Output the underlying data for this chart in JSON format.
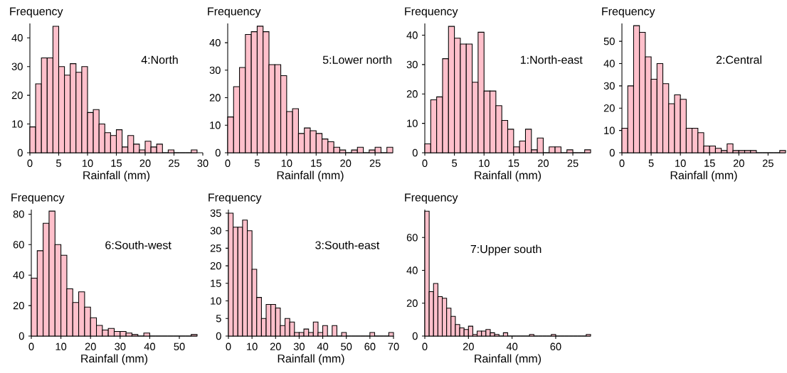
{
  "chart_data": [
    {
      "type": "histogram",
      "xlabel": "Rainfall (mm)",
      "ylabel": "Frequency",
      "annotations": [
        "4:North"
      ],
      "color": "#ffc0cb",
      "bins": [
        0,
        1,
        2,
        3,
        4,
        5,
        6,
        7,
        8,
        9,
        10,
        11,
        12,
        13,
        14,
        15,
        16,
        17,
        18,
        19,
        20,
        21,
        22,
        23,
        24,
        25,
        26,
        27,
        28,
        29
      ],
      "values": [
        9,
        24,
        33,
        33,
        44,
        30,
        27,
        31,
        28,
        30,
        14,
        15,
        10,
        7,
        6,
        8,
        2,
        6,
        3,
        1,
        4,
        2,
        3,
        0,
        1,
        0,
        0,
        0,
        1
      ],
      "xlim": [
        0,
        30
      ],
      "xticks": [
        0,
        5,
        10,
        15,
        20,
        25,
        30
      ],
      "ylim": [
        0,
        45
      ],
      "yticks": [
        0,
        10,
        20,
        30,
        40
      ]
    },
    {
      "type": "histogram",
      "xlabel": "Rainfall (mm)",
      "ylabel": "Frequency",
      "annotations": [
        "5:Lower north"
      ],
      "color": "#ffc0cb",
      "bins": [
        0,
        1,
        2,
        3,
        4,
        5,
        6,
        7,
        8,
        9,
        10,
        11,
        12,
        13,
        14,
        15,
        16,
        17,
        18,
        19,
        20,
        21,
        22,
        23,
        24,
        25,
        26,
        27,
        28
      ],
      "values": [
        13,
        24,
        31,
        43,
        44,
        46,
        44,
        32,
        32,
        28,
        15,
        16,
        7,
        9,
        8,
        7,
        5,
        4,
        2,
        1,
        0,
        1,
        2,
        0,
        1,
        2,
        0,
        2
      ],
      "xlim": [
        0,
        28
      ],
      "xticks": [
        0,
        5,
        10,
        15,
        20,
        25
      ],
      "ylim": [
        0,
        47
      ],
      "yticks": [
        0,
        10,
        20,
        30,
        40
      ]
    },
    {
      "type": "histogram",
      "xlabel": "Rainfall (mm)",
      "ylabel": "Frequency",
      "annotations": [
        "1:North-east"
      ],
      "color": "#ffc0cb",
      "bins": [
        0,
        1,
        2,
        3,
        4,
        5,
        6,
        7,
        8,
        9,
        10,
        11,
        12,
        13,
        14,
        15,
        16,
        17,
        18,
        19,
        20,
        21,
        22,
        23,
        24,
        25,
        26,
        27,
        28
      ],
      "values": [
        3,
        18,
        19,
        32,
        43,
        39,
        37,
        37,
        24,
        41,
        21,
        21,
        16,
        11,
        8,
        2,
        4,
        8,
        1,
        5,
        0,
        2,
        2,
        0,
        1,
        0,
        0,
        1
      ],
      "xlim": [
        0,
        28
      ],
      "xticks": [
        0,
        5,
        10,
        15,
        20,
        25
      ],
      "ylim": [
        0,
        44
      ],
      "yticks": [
        0,
        10,
        20,
        30,
        40
      ]
    },
    {
      "type": "histogram",
      "xlabel": "Rainfall (mm)",
      "ylabel": "Frequency",
      "annotations": [
        "2:Central"
      ],
      "color": "#ffc0cb",
      "bins": [
        0,
        1,
        2,
        3,
        4,
        5,
        6,
        7,
        8,
        9,
        10,
        11,
        12,
        13,
        14,
        15,
        16,
        17,
        18,
        19,
        20,
        21,
        22,
        23,
        24,
        25,
        26,
        27,
        28
      ],
      "values": [
        11,
        30,
        57,
        54,
        43,
        33,
        40,
        31,
        22,
        26,
        24,
        11,
        11,
        9,
        3,
        3,
        2,
        1,
        4,
        1,
        1,
        1,
        1,
        0,
        0,
        0,
        0,
        1
      ],
      "xlim": [
        0,
        28
      ],
      "xticks": [
        0,
        5,
        10,
        15,
        20,
        25
      ],
      "ylim": [
        0,
        58
      ],
      "yticks": [
        0,
        10,
        20,
        30,
        40,
        50
      ]
    },
    {
      "type": "histogram",
      "xlabel": "Rainfall (mm)",
      "ylabel": "Frequency",
      "annotations": [
        "6:South-west"
      ],
      "color": "#ffc0cb",
      "bins": [
        0,
        2,
        4,
        6,
        8,
        10,
        12,
        14,
        16,
        18,
        20,
        22,
        24,
        26,
        28,
        30,
        32,
        34,
        36,
        38,
        40,
        42,
        44,
        46,
        48,
        50,
        52,
        54,
        56
      ],
      "values": [
        38,
        56,
        74,
        82,
        60,
        53,
        31,
        22,
        29,
        19,
        12,
        7,
        4,
        5,
        3,
        3,
        2,
        1,
        0,
        2,
        0,
        0,
        0,
        0,
        0,
        0,
        0,
        1
      ],
      "xlim": [
        0,
        56
      ],
      "xticks": [
        0,
        10,
        20,
        30,
        40,
        50
      ],
      "ylim": [
        0,
        83
      ],
      "yticks": [
        0,
        20,
        40,
        60,
        80
      ]
    },
    {
      "type": "histogram",
      "xlabel": "Rainfall (mm)",
      "ylabel": "Frequency",
      "annotations": [
        "3:South-east"
      ],
      "color": "#ffc0cb",
      "bins": [
        0,
        2,
        4,
        6,
        8,
        10,
        12,
        14,
        16,
        18,
        20,
        22,
        24,
        26,
        28,
        30,
        32,
        34,
        36,
        38,
        40,
        42,
        44,
        46,
        48,
        50,
        52,
        54,
        56,
        58,
        60,
        62,
        64,
        66,
        68,
        70
      ],
      "values": [
        35,
        31,
        31,
        33,
        30,
        19,
        11,
        5,
        9,
        9,
        8,
        3,
        5,
        4,
        1,
        1,
        2,
        1,
        4,
        1,
        3,
        0,
        3,
        0,
        1,
        0,
        0,
        0,
        0,
        0,
        1,
        0,
        0,
        0,
        1
      ],
      "xlim": [
        0,
        70
      ],
      "xticks": [
        0,
        10,
        20,
        30,
        40,
        50,
        60,
        70
      ],
      "ylim": [
        0,
        36
      ],
      "yticks": [
        0,
        5,
        10,
        15,
        20,
        25,
        30,
        35
      ]
    },
    {
      "type": "histogram",
      "xlabel": "Rainfall (mm)",
      "ylabel": "Frequency",
      "annotations": [
        "7:Upper south"
      ],
      "color": "#ffc0cb",
      "bins": [
        0,
        2,
        4,
        6,
        8,
        10,
        12,
        14,
        16,
        18,
        20,
        22,
        24,
        26,
        28,
        30,
        32,
        34,
        36,
        38,
        40,
        42,
        44,
        46,
        48,
        50,
        52,
        54,
        56,
        58,
        60,
        62,
        64,
        66,
        68,
        70,
        72,
        74,
        76
      ],
      "values": [
        76,
        27,
        32,
        24,
        23,
        17,
        12,
        7,
        5,
        4,
        6,
        1,
        3,
        3,
        4,
        2,
        1,
        0,
        2,
        0,
        0,
        0,
        0,
        0,
        1,
        0,
        0,
        0,
        0,
        1,
        0,
        0,
        0,
        0,
        0,
        0,
        0,
        1
      ],
      "xlim": [
        0,
        76
      ],
      "xticks": [
        0,
        20,
        40,
        60
      ],
      "ylim": [
        0,
        77
      ],
      "yticks": [
        0,
        20,
        40,
        60
      ]
    }
  ]
}
